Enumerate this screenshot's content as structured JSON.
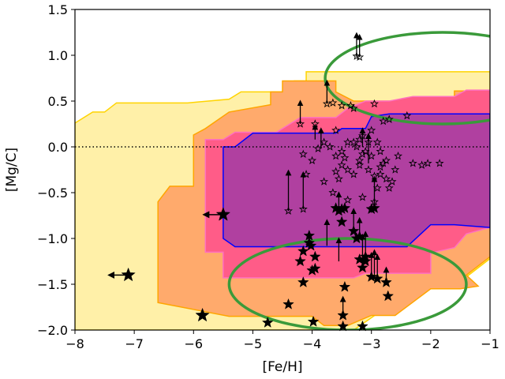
{
  "chart_data": {
    "type": "scatter",
    "title": "",
    "xlabel": "[Fe/H]",
    "ylabel": "[Mg/C]",
    "xlim": [
      -8,
      -1
    ],
    "ylim": [
      -2.0,
      1.5
    ],
    "xticks": [
      "−8",
      "−7",
      "−6",
      "−5",
      "−4",
      "−3",
      "−2",
      "−1"
    ],
    "yticks": [
      "−2.0",
      "−1.5",
      "−1.0",
      "−0.5",
      "0.0",
      "0.5",
      "1.0",
      "1.5"
    ],
    "reference_line": {
      "y": 0.0,
      "style": "dotted",
      "x_range": [
        -8,
        -1
      ]
    },
    "regions": [
      {
        "name": "outer-region",
        "fill": "#fff0a8",
        "stroke": "#ffd400",
        "points": [
          [
            -8,
            0.26
          ],
          [
            -7.7,
            0.38
          ],
          [
            -7.5,
            0.38
          ],
          [
            -7.3,
            0.48
          ],
          [
            -6.1,
            0.48
          ],
          [
            -5.4,
            0.52
          ],
          [
            -5.2,
            0.6
          ],
          [
            -4.3,
            0.6
          ],
          [
            -4.3,
            0.72
          ],
          [
            -4.1,
            0.72
          ],
          [
            -4.1,
            0.82
          ],
          [
            -1,
            0.82
          ],
          [
            -1,
            -1.22
          ],
          [
            -1.6,
            -1.52
          ],
          [
            -2.0,
            -1.52
          ],
          [
            -2.6,
            -1.82
          ],
          [
            -2.9,
            -1.82
          ],
          [
            -3.3,
            -2.0
          ],
          [
            -8,
            -2.0
          ]
        ]
      },
      {
        "name": "orange-region",
        "fill": "#ffaa6c",
        "stroke": "#ffa500",
        "points": [
          [
            -6.4,
            -0.43
          ],
          [
            -6.0,
            -0.43
          ],
          [
            -6.0,
            0.13
          ],
          [
            -5.8,
            0.2
          ],
          [
            -5.4,
            0.38
          ],
          [
            -4.7,
            0.46
          ],
          [
            -4.7,
            0.6
          ],
          [
            -4.5,
            0.6
          ],
          [
            -4.5,
            0.72
          ],
          [
            -3.6,
            0.72
          ],
          [
            -3.6,
            0.6
          ],
          [
            -3.3,
            0.5
          ],
          [
            -2.7,
            0.5
          ],
          [
            -1.6,
            0.5
          ],
          [
            -1.6,
            0.61
          ],
          [
            -1,
            0.61
          ],
          [
            -1,
            -1.2
          ],
          [
            -1.4,
            -1.4
          ],
          [
            -1.2,
            -1.52
          ],
          [
            -1.5,
            -1.55
          ],
          [
            -2.0,
            -1.55
          ],
          [
            -2.6,
            -1.84
          ],
          [
            -3.0,
            -1.84
          ],
          [
            -3.4,
            -1.95
          ],
          [
            -3.8,
            -1.95
          ],
          [
            -4.0,
            -1.85
          ],
          [
            -5.4,
            -1.85
          ],
          [
            -6.6,
            -1.7
          ],
          [
            -6.6,
            -0.6
          ]
        ]
      },
      {
        "name": "pink-region",
        "fill": "#ff5c88",
        "stroke": "#ff70c0",
        "points": [
          [
            -5.8,
            -0.6
          ],
          [
            -5.8,
            0.08
          ],
          [
            -5.5,
            0.08
          ],
          [
            -5.3,
            0.16
          ],
          [
            -4.6,
            0.16
          ],
          [
            -4.2,
            0.32
          ],
          [
            -3.6,
            0.32
          ],
          [
            -3.4,
            0.42
          ],
          [
            -3.1,
            0.5
          ],
          [
            -2.7,
            0.5
          ],
          [
            -2.3,
            0.55
          ],
          [
            -1.6,
            0.55
          ],
          [
            -1.4,
            0.62
          ],
          [
            -1,
            0.62
          ],
          [
            -1,
            -0.88
          ],
          [
            -1.4,
            -0.95
          ],
          [
            -1.6,
            -1.1
          ],
          [
            -2.0,
            -1.16
          ],
          [
            -2.0,
            -1.38
          ],
          [
            -3.1,
            -1.38
          ],
          [
            -3.3,
            -1.43
          ],
          [
            -5.5,
            -1.43
          ],
          [
            -5.5,
            -1.15
          ],
          [
            -5.8,
            -1.15
          ]
        ]
      },
      {
        "name": "purple-region",
        "fill": "#b040a0",
        "stroke": "#0000ff",
        "points": [
          [
            -5.5,
            -0.92
          ],
          [
            -5.5,
            -0.3
          ],
          [
            -5.5,
            0.0
          ],
          [
            -5.3,
            0.0
          ],
          [
            -5.0,
            0.15
          ],
          [
            -4.7,
            0.15
          ],
          [
            -4.6,
            0.15
          ],
          [
            -4.0,
            0.15
          ],
          [
            -3.6,
            0.15
          ],
          [
            -3.5,
            0.2
          ],
          [
            -3.1,
            0.2
          ],
          [
            -3.0,
            0.33
          ],
          [
            -2.7,
            0.36
          ],
          [
            -2.5,
            0.36
          ],
          [
            -1,
            0.36
          ],
          [
            -1,
            -0.88
          ],
          [
            -1.6,
            -0.85
          ],
          [
            -2.0,
            -0.85
          ],
          [
            -2.4,
            -1.09
          ],
          [
            -3.3,
            -1.09
          ],
          [
            -3.9,
            -1.09
          ],
          [
            -4.0,
            -1.09
          ],
          [
            -5.3,
            -1.09
          ],
          [
            -5.5,
            -1.0
          ]
        ]
      }
    ],
    "ellipses": [
      {
        "name": "upper-ellipse",
        "center": [
          -1.8,
          0.75
        ],
        "radius": [
          1.98,
          0.5
        ],
        "stroke": "#3a9a3a"
      },
      {
        "name": "lower-ellipse",
        "center": [
          -3.4,
          -1.5
        ],
        "radius": [
          2.0,
          0.5
        ],
        "stroke": "#3a9a3a"
      }
    ],
    "series": [
      {
        "name": "filled-stars",
        "marker": "filled-star",
        "points": [
          [
            -7.1,
            -1.4,
            "left"
          ],
          [
            -5.85,
            -1.84,
            ""
          ],
          [
            -5.5,
            -0.74,
            "left"
          ],
          [
            -4.75,
            -1.92,
            ""
          ],
          [
            -4.4,
            -1.72,
            ""
          ],
          [
            -4.2,
            -1.25,
            ""
          ],
          [
            -4.15,
            -1.14,
            ""
          ],
          [
            -4.15,
            -1.48,
            ""
          ],
          [
            -4.05,
            -0.97,
            ""
          ],
          [
            -4.05,
            -1.05,
            ""
          ],
          [
            -4.02,
            -1.08,
            ""
          ],
          [
            -4.0,
            -1.35,
            ""
          ],
          [
            -3.95,
            -1.33,
            ""
          ],
          [
            -3.98,
            -1.91,
            ""
          ],
          [
            -3.95,
            -1.2,
            ""
          ],
          [
            -3.6,
            -0.67,
            ""
          ],
          [
            -3.55,
            -0.7,
            ""
          ],
          [
            -3.5,
            -0.68,
            ""
          ],
          [
            -3.45,
            -0.67,
            ""
          ],
          [
            -3.5,
            -0.82,
            ""
          ],
          [
            -3.48,
            -1.84,
            ""
          ],
          [
            -3.45,
            -1.53,
            ""
          ],
          [
            -3.48,
            -1.96,
            ""
          ],
          [
            -3.3,
            -0.92,
            ""
          ],
          [
            -3.2,
            -0.98,
            ""
          ],
          [
            -3.25,
            -1.0,
            ""
          ],
          [
            -3.2,
            -1.23,
            ""
          ],
          [
            -3.15,
            -1.32,
            ""
          ],
          [
            -3.1,
            -1.2,
            ""
          ],
          [
            -3.15,
            -1.96,
            ""
          ],
          [
            -3.1,
            -1.25,
            ""
          ],
          [
            -3.0,
            -1.42,
            ""
          ],
          [
            -2.9,
            -1.44,
            ""
          ],
          [
            -2.75,
            -1.48,
            ""
          ],
          [
            -2.72,
            -1.63,
            ""
          ],
          [
            -3.0,
            -0.68,
            ""
          ],
          [
            -2.95,
            -0.67,
            ""
          ]
        ]
      },
      {
        "name": "open-stars",
        "marker": "open-star",
        "points": [
          [
            -3.25,
            0.99
          ],
          [
            -3.2,
            0.98
          ],
          [
            -3.75,
            0.47
          ],
          [
            -3.65,
            0.48
          ],
          [
            -3.5,
            0.45
          ],
          [
            -3.35,
            0.45
          ],
          [
            -3.3,
            0.42
          ],
          [
            -2.95,
            0.47
          ],
          [
            -2.7,
            0.3
          ],
          [
            -2.8,
            0.28
          ],
          [
            -2.4,
            0.34
          ],
          [
            -3.0,
            0.18
          ],
          [
            -3.15,
            0.12
          ],
          [
            -3.2,
            0.08
          ],
          [
            -3.3,
            0.05
          ],
          [
            -3.4,
            0.05
          ],
          [
            -3.5,
            -0.05
          ],
          [
            -3.6,
            -0.1
          ],
          [
            -3.7,
            0.0
          ],
          [
            -3.8,
            0.05
          ],
          [
            -3.9,
            -0.02
          ],
          [
            -4.15,
            -0.08
          ],
          [
            -4.0,
            -0.15
          ],
          [
            -4.1,
            -0.3
          ],
          [
            -3.8,
            -0.38
          ],
          [
            -3.6,
            -0.27
          ],
          [
            -3.3,
            -0.3
          ],
          [
            -3.2,
            -0.15
          ],
          [
            -3.1,
            -0.05
          ],
          [
            -3.05,
            -0.25
          ],
          [
            -2.95,
            -0.32
          ],
          [
            -2.85,
            -0.3
          ],
          [
            -2.75,
            -0.35
          ],
          [
            -2.6,
            -0.25
          ],
          [
            -2.8,
            -0.18
          ],
          [
            -3.0,
            -0.1
          ],
          [
            -2.85,
            -0.05
          ],
          [
            -3.2,
            -0.2
          ],
          [
            -3.4,
            -0.25
          ],
          [
            -3.5,
            -0.2
          ],
          [
            -3.55,
            -0.35
          ],
          [
            -3.45,
            -0.12
          ],
          [
            -3.65,
            -0.5
          ],
          [
            -3.4,
            -0.58
          ],
          [
            -3.15,
            -0.55
          ],
          [
            -2.95,
            -0.6
          ],
          [
            -2.9,
            -0.45
          ],
          [
            -2.7,
            -0.45
          ],
          [
            -3.25,
            0.0
          ],
          [
            -3.15,
            -0.08
          ],
          [
            -3.05,
            0.05
          ],
          [
            -2.9,
            0.05
          ],
          [
            -2.85,
            -0.22
          ],
          [
            -2.75,
            -0.15
          ],
          [
            -2.65,
            -0.38
          ],
          [
            -2.55,
            -0.1
          ],
          [
            -2.3,
            -0.18
          ],
          [
            -2.15,
            -0.2
          ],
          [
            -2.05,
            -0.18
          ],
          [
            -1.85,
            -0.18
          ],
          [
            -3.6,
            0.18
          ],
          [
            -3.95,
            0.25
          ],
          [
            -4.2,
            0.25
          ],
          [
            -4.4,
            -0.7
          ],
          [
            -4.15,
            -0.68
          ]
        ]
      }
    ],
    "upper_limit_arrows": [
      [
        -3.25,
        0.99,
        1.22
      ],
      [
        -3.2,
        0.98,
        1.2
      ],
      [
        -3.75,
        0.47,
        0.7
      ],
      [
        -4.2,
        0.25,
        0.48
      ],
      [
        -3.95,
        0.08,
        0.22
      ],
      [
        -3.85,
        -0.02,
        0.18
      ],
      [
        -3.15,
        -0.0,
        0.18
      ],
      [
        -3.05,
        -0.18,
        0.12
      ],
      [
        -4.4,
        -0.7,
        -0.28
      ],
      [
        -4.15,
        -0.68,
        -0.3
      ],
      [
        -3.55,
        -0.67,
        -0.52
      ],
      [
        -3.3,
        -0.92,
        -0.7
      ],
      [
        -3.2,
        -1.0,
        -0.8
      ],
      [
        -3.15,
        -1.32,
        -0.98
      ],
      [
        -3.1,
        -1.25,
        -0.95
      ],
      [
        -3.0,
        -1.42,
        -1.18
      ],
      [
        -2.95,
        -1.44,
        -1.15
      ],
      [
        -2.9,
        -1.44,
        -1.2
      ],
      [
        -2.75,
        -1.48,
        -1.34
      ],
      [
        -3.75,
        -1.08,
        -0.82
      ],
      [
        -3.55,
        -1.25,
        -1.02
      ],
      [
        -3.48,
        -1.84,
        -1.66
      ],
      [
        -2.95,
        -0.67,
        -0.35
      ]
    ]
  }
}
